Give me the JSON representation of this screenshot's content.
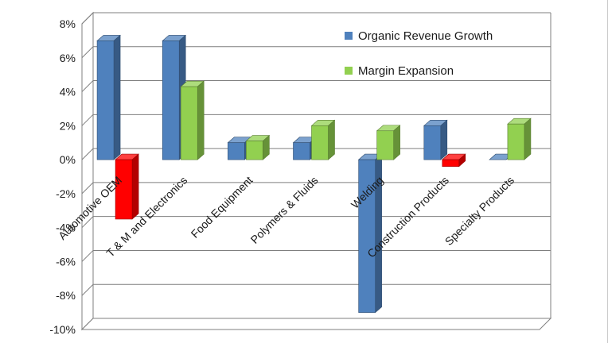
{
  "chart_data": {
    "type": "bar",
    "title": "",
    "xlabel": "",
    "ylabel": "",
    "categories": [
      "Automotive OEM",
      "T & M and Electronics",
      "Food Equipment",
      "Polymers & Fluids",
      "Welding",
      "Construction Products",
      "Specialty Products"
    ],
    "series": [
      {
        "name": "Organic Revenue Growth",
        "color": "#4f81bd",
        "values": [
          7,
          7,
          1,
          1,
          -9,
          2,
          0
        ]
      },
      {
        "name": "Margin Expansion",
        "color": "#92d050",
        "values": [
          -3.5,
          4.3,
          1.1,
          2.0,
          1.7,
          -0.4,
          2.1
        ]
      }
    ],
    "negative_color_series2": "#ff0000",
    "ylim": [
      -10,
      8
    ],
    "yticks": [
      "8%",
      "6%",
      "4%",
      "2%",
      "0%",
      "-2%",
      "-4%",
      "-6%",
      "-8%",
      "-10%"
    ],
    "grid": true,
    "legend_position": "top-right",
    "style": "3d-clustered-bar"
  }
}
